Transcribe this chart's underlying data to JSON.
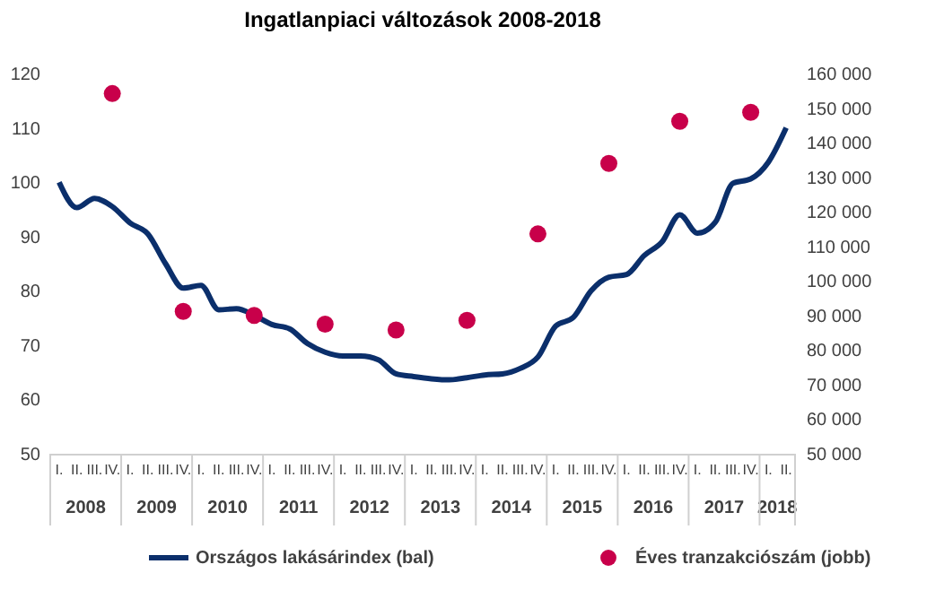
{
  "chart_data": {
    "type": "line",
    "title": "Ingatlanpiaci változások 2008-2018",
    "categories": [
      "I.",
      "II.",
      "III.",
      "IV.",
      "I.",
      "II.",
      "III.",
      "IV.",
      "I.",
      "II.",
      "III.",
      "IV.",
      "I.",
      "II.",
      "III.",
      "IV.",
      "I.",
      "II.",
      "III.",
      "IV.",
      "I.",
      "II.",
      "III.",
      "IV.",
      "I.",
      "II.",
      "III.",
      "IV.",
      "I.",
      "II.",
      "III.",
      "IV.",
      "I.",
      "II.",
      "III.",
      "IV.",
      "I.",
      "II.",
      "III.",
      "IV.",
      "I.",
      "II."
    ],
    "series": [
      {
        "name": "Országos lakásárindex (bal)",
        "axis": "y",
        "color": "#0b2f6b",
        "marker": "none",
        "line_style": "solid",
        "values": [
          100,
          95.3,
          97,
          95.5,
          92.5,
          90.5,
          85,
          80.5,
          81,
          76.5,
          76.7,
          75.5,
          73.8,
          73,
          70.3,
          68.7,
          68,
          68,
          67.3,
          64.7,
          64.2,
          63.8,
          63.6,
          64,
          64.5,
          64.7,
          65.7,
          67.8,
          73.5,
          75.1,
          80,
          82.5,
          83,
          86.5,
          89,
          94,
          90.6,
          92.6,
          99.8,
          100.6,
          103.7,
          110
        ]
      },
      {
        "name": "Éves tranzakciószám (jobb)",
        "type": "scatter",
        "axis": "y2",
        "color": "#c8004a",
        "marker": "circle",
        "values": [
          null,
          null,
          null,
          154200,
          null,
          null,
          null,
          91200,
          null,
          null,
          null,
          90000,
          null,
          null,
          null,
          87500,
          null,
          null,
          null,
          85800,
          null,
          null,
          null,
          88600,
          null,
          null,
          null,
          113600,
          null,
          null,
          null,
          134000,
          null,
          null,
          null,
          146200,
          null,
          null,
          null,
          148800,
          null,
          null
        ]
      }
    ],
    "ylim": [
      50,
      120
    ],
    "yticks": [
      50,
      60,
      70,
      80,
      90,
      100,
      110,
      120
    ],
    "y2lim": [
      50000,
      160000
    ],
    "y2ticks": [
      {
        "value": 50000,
        "label": "50 000"
      },
      {
        "value": 60000,
        "label": "60 000"
      },
      {
        "value": 70000,
        "label": "70 000"
      },
      {
        "value": 80000,
        "label": "80 000"
      },
      {
        "value": 90000,
        "label": "90 000"
      },
      {
        "value": 100000,
        "label": "100 000"
      },
      {
        "value": 110000,
        "label": "110 000"
      },
      {
        "value": 120000,
        "label": "120 000"
      },
      {
        "value": 130000,
        "label": "130 000"
      },
      {
        "value": 140000,
        "label": "140 000"
      },
      {
        "value": 150000,
        "label": "150 000"
      },
      {
        "value": 160000,
        "label": "160 000"
      }
    ],
    "annotations": [
      "2008",
      "2009",
      "2010",
      "2011",
      "2012",
      "2013",
      "2014",
      "2015",
      "2016",
      "2017",
      "2018"
    ],
    "grid": false,
    "legend": "bottom"
  }
}
